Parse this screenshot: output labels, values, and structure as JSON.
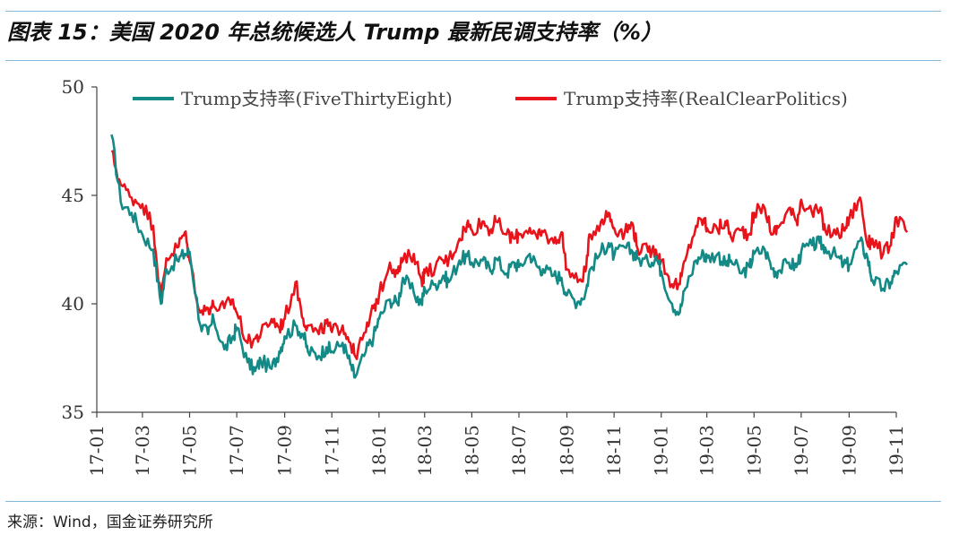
{
  "title": "图表 15：美国 2020 年总统候选人 Trump 最新民调支持率（%）",
  "source": "来源：Wind，国金证券研究所",
  "colors": {
    "series_538": "#148a86",
    "series_rcp": "#e8141b",
    "rule": "#7fb9dc"
  },
  "chart_data": {
    "type": "line",
    "title": "",
    "xlabel": "",
    "ylabel": "",
    "ylim": [
      35,
      50
    ],
    "yticks": [
      35,
      40,
      45,
      50
    ],
    "xticks": [
      "17-01",
      "17-03",
      "17-05",
      "17-07",
      "17-09",
      "17-11",
      "18-01",
      "18-03",
      "18-05",
      "18-07",
      "18-09",
      "18-11",
      "19-01",
      "19-03",
      "19-05",
      "19-07",
      "19-09",
      "19-11"
    ],
    "legend_position": "top",
    "grid": false,
    "series": [
      {
        "name": "Trump支持率(FiveThirtyEight)",
        "x": [
          "2017-01-20",
          "2017-02-01",
          "2017-02-15",
          "2017-03-01",
          "2017-03-15",
          "2017-03-25",
          "2017-04-01",
          "2017-04-15",
          "2017-04-25",
          "2017-05-01",
          "2017-05-15",
          "2017-05-25",
          "2017-06-01",
          "2017-06-15",
          "2017-06-25",
          "2017-07-01",
          "2017-07-15",
          "2017-07-25",
          "2017-08-01",
          "2017-08-15",
          "2017-08-25",
          "2017-09-01",
          "2017-09-15",
          "2017-09-25",
          "2017-10-01",
          "2017-10-15",
          "2017-10-25",
          "2017-11-01",
          "2017-11-15",
          "2017-11-25",
          "2017-12-01",
          "2017-12-15",
          "2017-12-25",
          "2018-01-01",
          "2018-01-15",
          "2018-01-25",
          "2018-02-01",
          "2018-02-15",
          "2018-02-25",
          "2018-03-01",
          "2018-03-15",
          "2018-03-25",
          "2018-04-01",
          "2018-04-15",
          "2018-04-25",
          "2018-05-01",
          "2018-05-15",
          "2018-05-25",
          "2018-06-01",
          "2018-06-15",
          "2018-06-25",
          "2018-07-01",
          "2018-07-15",
          "2018-07-25",
          "2018-08-01",
          "2018-08-15",
          "2018-08-25",
          "2018-09-01",
          "2018-09-15",
          "2018-09-25",
          "2018-10-01",
          "2018-10-15",
          "2018-10-25",
          "2018-11-01",
          "2018-11-15",
          "2018-11-25",
          "2018-12-01",
          "2018-12-15",
          "2018-12-25",
          "2019-01-01",
          "2019-01-15",
          "2019-01-25",
          "2019-02-01",
          "2019-02-15",
          "2019-02-25",
          "2019-03-01",
          "2019-03-15",
          "2019-03-25",
          "2019-04-01",
          "2019-04-15",
          "2019-04-25",
          "2019-05-01",
          "2019-05-15",
          "2019-05-25",
          "2019-06-01",
          "2019-06-15",
          "2019-06-25",
          "2019-07-01",
          "2019-07-15",
          "2019-07-25",
          "2019-08-01",
          "2019-08-15",
          "2019-08-25",
          "2019-09-01",
          "2019-09-15",
          "2019-09-25",
          "2019-10-01",
          "2019-10-15",
          "2019-10-25",
          "2019-11-01",
          "2019-11-15"
        ],
        "y": [
          47.8,
          44.7,
          44.2,
          43.2,
          42.5,
          40.0,
          41.6,
          42.0,
          42.3,
          42.4,
          39.0,
          38.6,
          39.3,
          37.9,
          38.4,
          38.9,
          37.3,
          36.9,
          37.4,
          37.0,
          37.8,
          38.5,
          39.0,
          38.6,
          37.8,
          37.6,
          38.0,
          37.8,
          38.2,
          37.2,
          36.6,
          37.8,
          38.5,
          39.3,
          40.2,
          40.0,
          41.2,
          40.5,
          40.0,
          40.7,
          40.9,
          41.3,
          41.0,
          42.0,
          42.2,
          41.9,
          42.0,
          41.5,
          42.1,
          41.4,
          41.9,
          41.7,
          42.3,
          41.7,
          41.6,
          41.3,
          41.2,
          40.4,
          40.1,
          40.5,
          41.6,
          42.4,
          42.8,
          42.2,
          42.6,
          42.4,
          42.1,
          41.9,
          42.2,
          41.5,
          40.0,
          39.6,
          40.7,
          42.0,
          42.3,
          42.1,
          42.3,
          41.8,
          42.0,
          41.4,
          41.7,
          42.3,
          42.5,
          41.6,
          41.5,
          41.9,
          41.7,
          42.4,
          42.7,
          42.8,
          42.6,
          42.2,
          41.8,
          41.8,
          42.9,
          42.1,
          41.1,
          40.7,
          41.0,
          41.5,
          41.8
        ]
      },
      {
        "name": "Trump支持率(RealClearPolitics)",
        "x": [
          "2017-01-20",
          "2017-02-01",
          "2017-02-15",
          "2017-03-01",
          "2017-03-15",
          "2017-03-25",
          "2017-04-01",
          "2017-04-15",
          "2017-04-25",
          "2017-05-01",
          "2017-05-15",
          "2017-05-25",
          "2017-06-01",
          "2017-06-15",
          "2017-06-25",
          "2017-07-01",
          "2017-07-15",
          "2017-07-25",
          "2017-08-01",
          "2017-08-15",
          "2017-08-25",
          "2017-09-01",
          "2017-09-15",
          "2017-09-25",
          "2017-10-01",
          "2017-10-15",
          "2017-10-25",
          "2017-11-01",
          "2017-11-15",
          "2017-11-25",
          "2017-12-01",
          "2017-12-15",
          "2017-12-25",
          "2018-01-01",
          "2018-01-15",
          "2018-01-25",
          "2018-02-01",
          "2018-02-15",
          "2018-02-25",
          "2018-03-01",
          "2018-03-15",
          "2018-03-25",
          "2018-04-01",
          "2018-04-15",
          "2018-04-25",
          "2018-05-01",
          "2018-05-15",
          "2018-05-25",
          "2018-06-01",
          "2018-06-15",
          "2018-06-25",
          "2018-07-01",
          "2018-07-15",
          "2018-07-25",
          "2018-08-01",
          "2018-08-15",
          "2018-08-25",
          "2018-09-01",
          "2018-09-15",
          "2018-09-25",
          "2018-10-01",
          "2018-10-15",
          "2018-10-25",
          "2018-11-01",
          "2018-11-15",
          "2018-11-25",
          "2018-12-01",
          "2018-12-15",
          "2018-12-25",
          "2019-01-01",
          "2019-01-15",
          "2019-01-25",
          "2019-02-01",
          "2019-02-15",
          "2019-02-25",
          "2019-03-01",
          "2019-03-15",
          "2019-03-25",
          "2019-04-01",
          "2019-04-15",
          "2019-04-25",
          "2019-05-01",
          "2019-05-15",
          "2019-05-25",
          "2019-06-01",
          "2019-06-15",
          "2019-06-25",
          "2019-07-01",
          "2019-07-15",
          "2019-07-25",
          "2019-08-01",
          "2019-08-15",
          "2019-08-25",
          "2019-09-01",
          "2019-09-15",
          "2019-09-25",
          "2019-10-01",
          "2019-10-15",
          "2019-10-25",
          "2019-11-01",
          "2019-11-15"
        ],
        "y": [
          47.0,
          45.5,
          44.9,
          44.6,
          43.6,
          40.2,
          42.1,
          42.6,
          43.3,
          42.0,
          39.6,
          39.8,
          39.9,
          39.8,
          40.2,
          39.6,
          38.2,
          38.4,
          38.6,
          39.3,
          38.9,
          39.3,
          41.0,
          39.3,
          39.0,
          38.6,
          39.1,
          38.7,
          39.0,
          38.2,
          37.6,
          38.7,
          39.8,
          40.4,
          41.9,
          41.4,
          42.0,
          42.3,
          41.1,
          41.4,
          41.7,
          42.0,
          42.0,
          43.0,
          43.7,
          43.4,
          43.8,
          43.4,
          43.8,
          43.2,
          43.0,
          43.2,
          43.5,
          43.0,
          43.3,
          42.8,
          43.3,
          41.6,
          41.0,
          41.5,
          43.2,
          43.8,
          44.2,
          43.5,
          43.3,
          43.7,
          42.6,
          42.4,
          42.5,
          42.0,
          40.9,
          40.9,
          42.0,
          43.6,
          43.9,
          43.5,
          43.4,
          43.8,
          43.1,
          43.4,
          43.2,
          44.2,
          44.4,
          43.2,
          43.5,
          44.4,
          43.8,
          44.8,
          44.2,
          44.3,
          43.4,
          43.2,
          43.4,
          43.9,
          44.9,
          42.7,
          43.0,
          42.3,
          42.7,
          44.0,
          43.3
        ]
      }
    ]
  }
}
